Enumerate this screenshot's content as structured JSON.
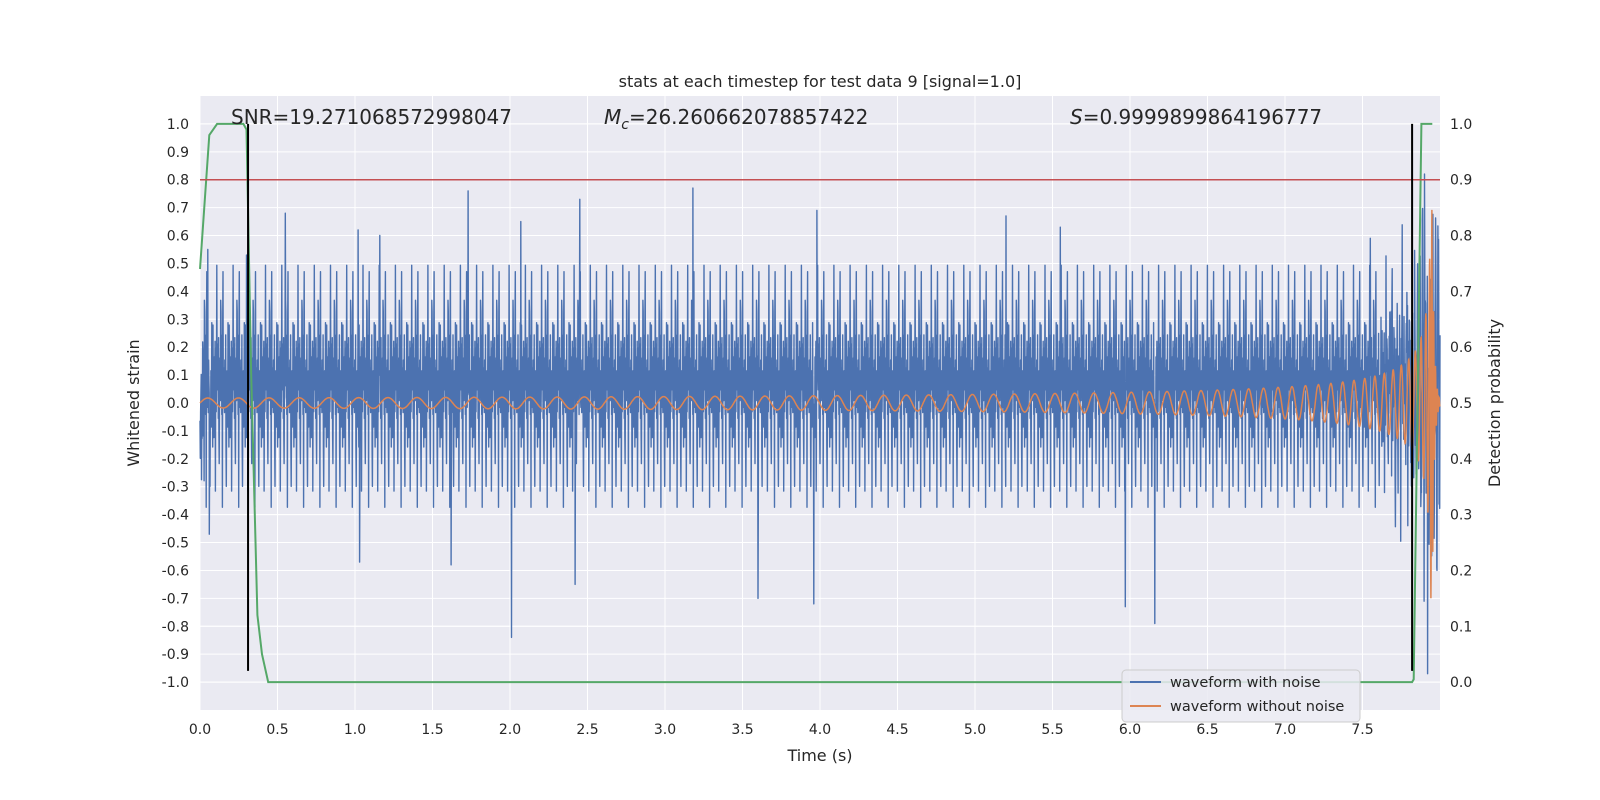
{
  "chart_data": {
    "type": "line",
    "title": "stats at each timestep for test data 9 [signal=1.0]",
    "xlabel": "Time (s)",
    "ylabel": "Whitened strain",
    "y2label": "Detection probability",
    "xlim": [
      0.0,
      8.0
    ],
    "ylim": [
      -1.1,
      1.1
    ],
    "y2lim": [
      -0.05,
      1.05
    ],
    "x_ticks": [
      "0.0",
      "0.5",
      "1.0",
      "1.5",
      "2.0",
      "2.5",
      "3.0",
      "3.5",
      "4.0",
      "4.5",
      "5.0",
      "5.5",
      "6.0",
      "6.5",
      "7.0",
      "7.5"
    ],
    "y_ticks": [
      "1.0",
      "0.9",
      "0.8",
      "0.7",
      "0.6",
      "0.5",
      "0.4",
      "0.3",
      "0.2",
      "0.1",
      "0.0",
      "-0.1",
      "-0.2",
      "-0.3",
      "-0.4",
      "-0.5",
      "-0.6",
      "-0.7",
      "-0.8",
      "-0.9",
      "-1.0"
    ],
    "y2_ticks": [
      "1.0",
      "0.9",
      "0.8",
      "0.7",
      "0.6",
      "0.5",
      "0.4",
      "0.3",
      "0.2",
      "0.1",
      "0.0"
    ],
    "annotations": {
      "snr_label": "SNR=19.27106857299804\u00037",
      "mc_symbol": "M",
      "mc_sub": "c",
      "mc_value": "=26.260662078857422",
      "s_symbol": "S",
      "s_value": "=0.9999899864196777"
    },
    "threshold": {
      "y2": 0.9,
      "color": "#c44e52"
    },
    "vlines": [
      {
        "x": 0.31,
        "y": [
          -0.96,
          1.0
        ],
        "color": "#000000"
      },
      {
        "x": 7.82,
        "y": [
          -0.96,
          1.0
        ],
        "color": "#000000"
      }
    ],
    "series": [
      {
        "name": "waveform with noise",
        "color": "#4c72b0",
        "axis": "left",
        "envelope_amp": 0.42,
        "peaks": [
          {
            "x": 0.05,
            "y": 0.55
          },
          {
            "x": 0.3,
            "y": 0.53
          },
          {
            "x": 0.55,
            "y": 0.68
          },
          {
            "x": 1.02,
            "y": 0.62
          },
          {
            "x": 1.16,
            "y": 0.6
          },
          {
            "x": 1.73,
            "y": 0.76
          },
          {
            "x": 2.07,
            "y": 0.65
          },
          {
            "x": 2.45,
            "y": 0.73
          },
          {
            "x": 3.18,
            "y": 0.77
          },
          {
            "x": 3.98,
            "y": 0.69
          },
          {
            "x": 5.2,
            "y": 0.67
          },
          {
            "x": 5.55,
            "y": 0.63
          },
          {
            "x": 7.55,
            "y": 0.59
          },
          {
            "x": 7.9,
            "y": 0.82
          }
        ],
        "troughs": [
          {
            "x": 0.06,
            "y": -0.47
          },
          {
            "x": 1.03,
            "y": -0.57
          },
          {
            "x": 1.62,
            "y": -0.58
          },
          {
            "x": 2.01,
            "y": -0.84
          },
          {
            "x": 2.42,
            "y": -0.65
          },
          {
            "x": 3.6,
            "y": -0.7
          },
          {
            "x": 3.96,
            "y": -0.72
          },
          {
            "x": 5.97,
            "y": -0.73
          },
          {
            "x": 6.16,
            "y": -0.79
          },
          {
            "x": 7.92,
            "y": -0.97
          }
        ]
      },
      {
        "name": "waveform without noise",
        "color": "#dd8452",
        "axis": "left",
        "model": "chirp",
        "chirp_start_hz": 5,
        "merger_time": 7.95,
        "peak_amp": 0.7
      },
      {
        "name": "detection probability",
        "color": "#55a868",
        "axis": "right",
        "x": [
          0.0,
          0.06,
          0.11,
          0.2,
          0.28,
          0.3,
          0.33,
          0.37,
          0.4,
          0.44,
          7.82,
          7.83,
          7.88,
          7.91,
          7.95
        ],
        "values": [
          0.74,
          0.98,
          1.0,
          1.0,
          1.0,
          0.99,
          0.55,
          0.12,
          0.05,
          0.0,
          0.0,
          0.005,
          1.0,
          1.0,
          1.0
        ]
      }
    ],
    "legend": {
      "position": "lower-right",
      "entries": [
        "waveform with noise",
        "waveform without noise"
      ]
    }
  }
}
